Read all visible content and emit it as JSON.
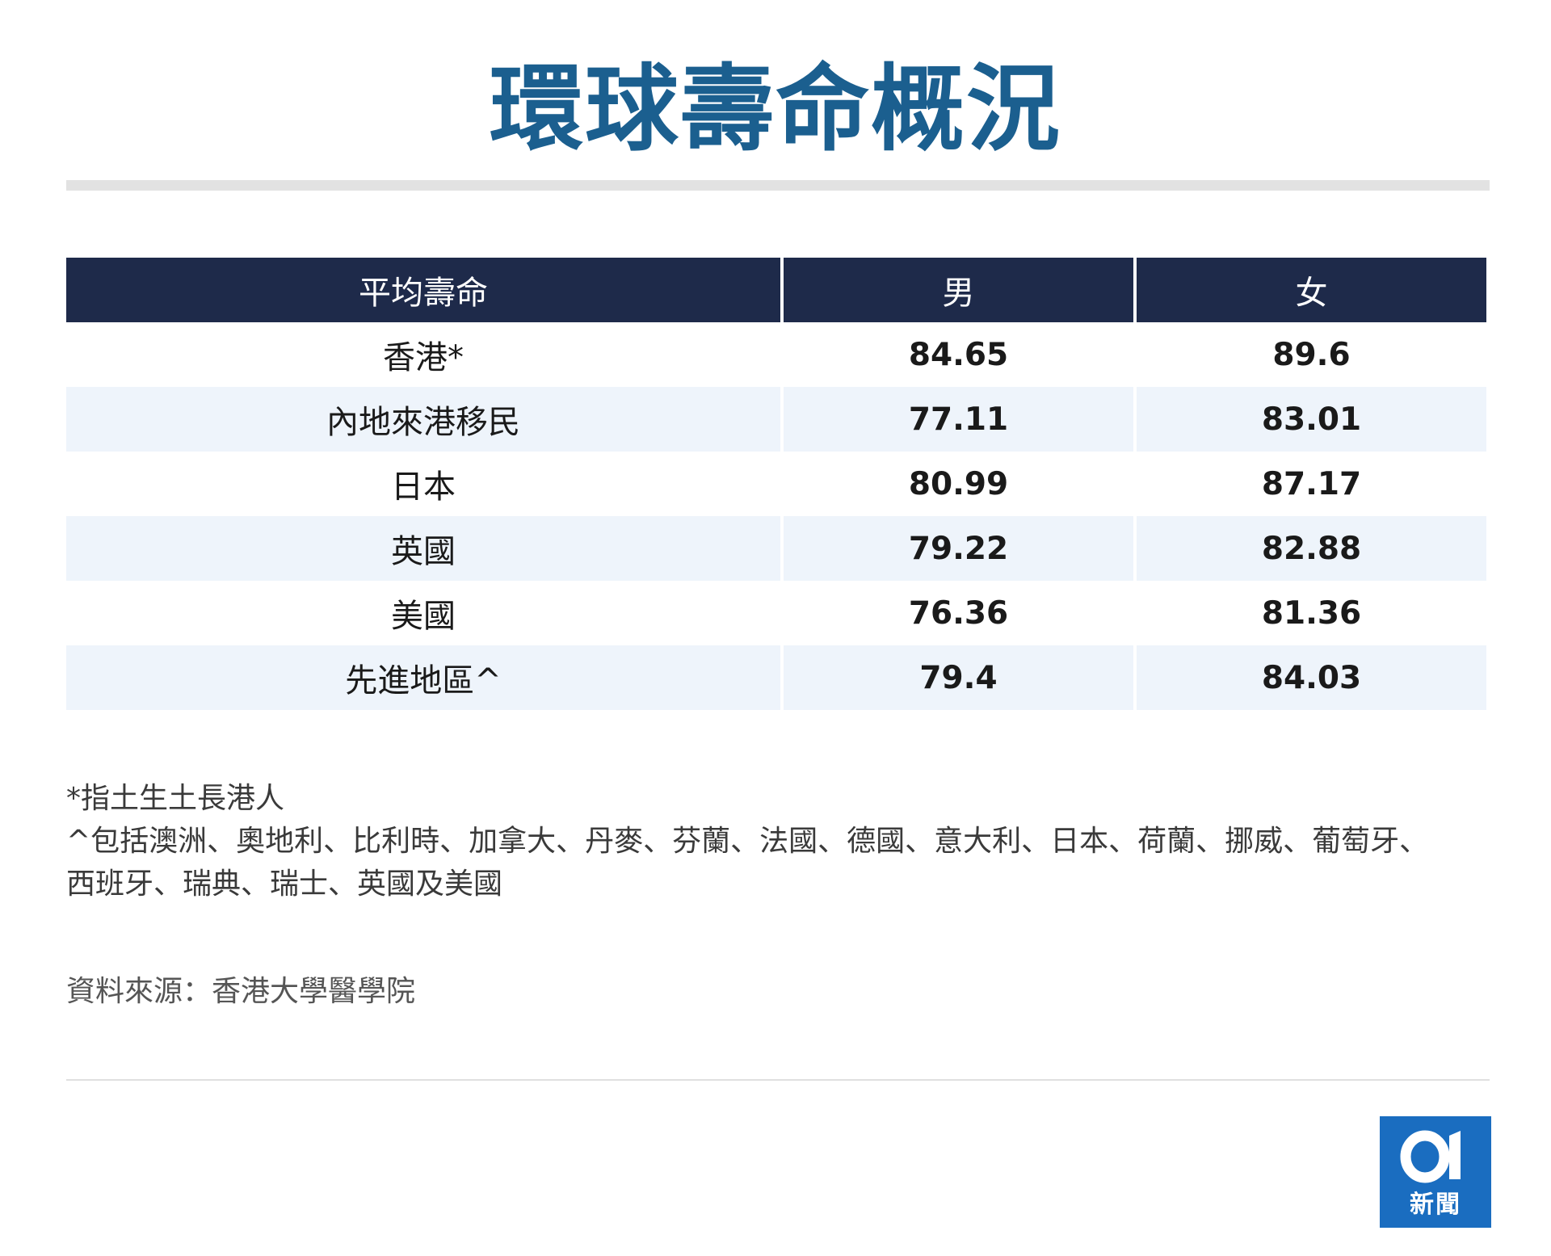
{
  "title": "環球壽命概況",
  "table": {
    "headers": [
      "平均壽命",
      "男",
      "女"
    ],
    "rows": [
      {
        "region": "香港*",
        "male": "84.65",
        "female": "89.6"
      },
      {
        "region": "內地來港移民",
        "male": "77.11",
        "female": "83.01"
      },
      {
        "region": "日本",
        "male": "80.99",
        "female": "87.17"
      },
      {
        "region": "英國",
        "male": "79.22",
        "female": "82.88"
      },
      {
        "region": "美國",
        "male": "76.36",
        "female": "81.36"
      },
      {
        "region": "先進地區^",
        "male": "79.4",
        "female": "84.03"
      }
    ]
  },
  "notes": [
    "*指土生土長港人",
    "^包括澳洲、奧地利、比利時、加拿大、丹麥、芬蘭、法國、德國、意大利、日本、荷蘭、挪威、葡萄牙、西班牙、瑞典、瑞士、英國及美國"
  ],
  "source": "資料來源：香港大學醫學院",
  "logo": {
    "mark": "01",
    "text": "新聞",
    "color": "#1a6dc0"
  },
  "colors": {
    "title": "#1b5f8f",
    "header_bg": "#1e2a4a",
    "stripe_bg": "#eef4fb"
  }
}
